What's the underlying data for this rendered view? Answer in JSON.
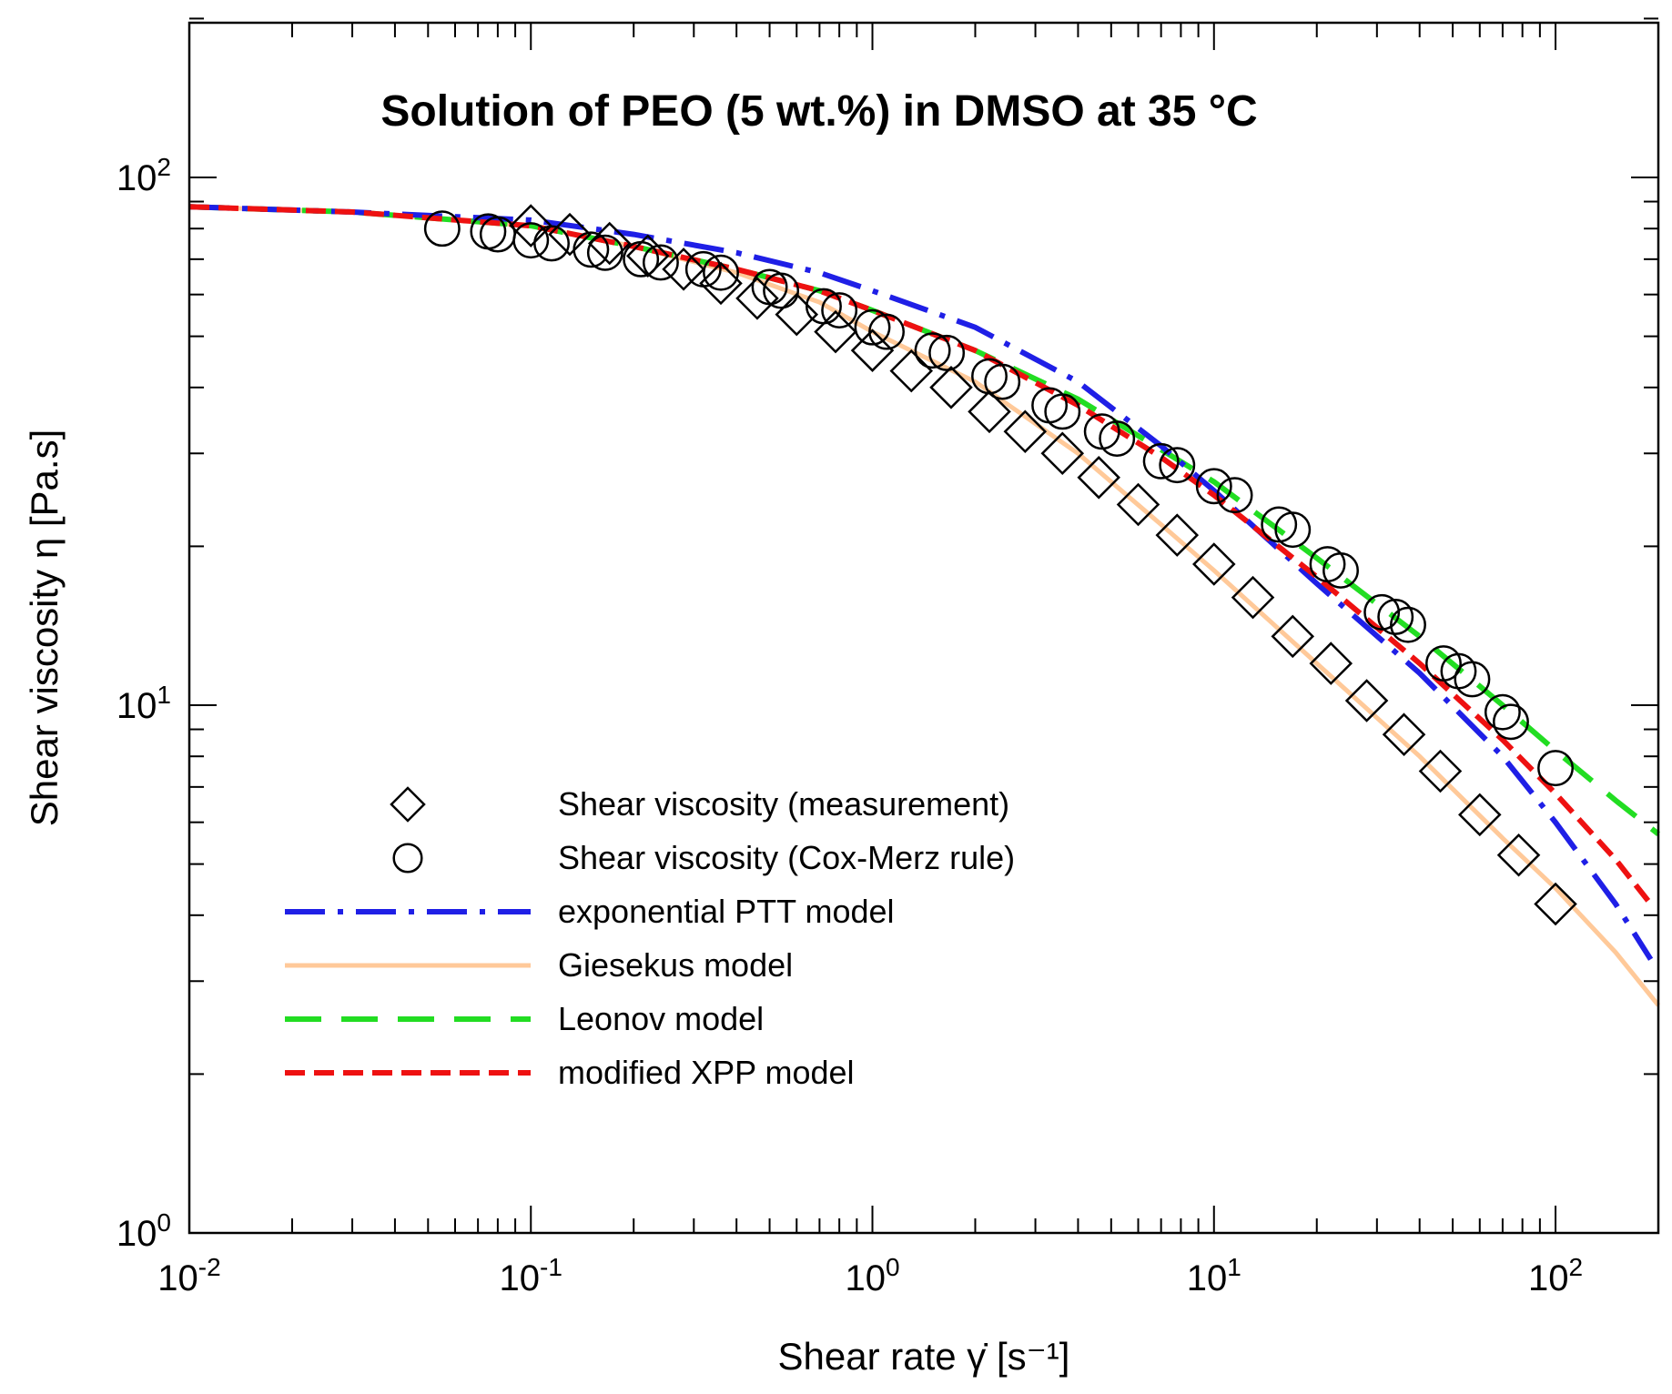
{
  "chart_data": {
    "type": "line",
    "title": "Solution of PEO (5 wt.%) in DMSO at 35 °C",
    "xlabel": "Shear rate γ̇ [s⁻¹]",
    "ylabel": "Shear viscosity η [Pa.s]",
    "xscale": "log",
    "yscale": "log",
    "xlim": [
      0.01,
      200
    ],
    "ylim": [
      1,
      200
    ],
    "x_ticks": [
      {
        "value": 0.01,
        "base": "10",
        "exp": "-2"
      },
      {
        "value": 0.1,
        "base": "10",
        "exp": "-1"
      },
      {
        "value": 1,
        "base": "10",
        "exp": "0"
      },
      {
        "value": 10,
        "base": "10",
        "exp": "1"
      },
      {
        "value": 100,
        "base": "10",
        "exp": "2"
      }
    ],
    "y_ticks": [
      {
        "value": 1,
        "base": "10",
        "exp": "0"
      },
      {
        "value": 10,
        "base": "10",
        "exp": "1"
      },
      {
        "value": 100,
        "base": "10",
        "exp": "2"
      }
    ],
    "legend_position": "lower-left",
    "series": [
      {
        "name": "Shear viscosity (measurement)",
        "kind": "marker",
        "marker": "diamond",
        "color": "#000000",
        "x": [
          0.1,
          0.13,
          0.17,
          0.22,
          0.28,
          0.36,
          0.46,
          0.6,
          0.78,
          1.0,
          1.3,
          1.7,
          2.2,
          2.8,
          3.6,
          4.6,
          6.0,
          7.8,
          10,
          13,
          17,
          22,
          28,
          36,
          46,
          60,
          78,
          100
        ],
        "y": [
          81,
          78,
          75,
          71,
          67,
          63,
          59,
          55,
          51,
          47,
          43,
          40,
          36,
          33,
          30,
          27,
          24,
          21,
          18.5,
          16,
          13.5,
          12,
          10.2,
          8.8,
          7.5,
          6.2,
          5.2,
          4.2
        ]
      },
      {
        "name": "Shear viscosity (Cox-Merz rule)",
        "kind": "marker",
        "marker": "circle",
        "color": "#000000",
        "x": [
          0.055,
          0.075,
          0.08,
          0.1,
          0.115,
          0.15,
          0.165,
          0.21,
          0.24,
          0.32,
          0.36,
          0.5,
          0.54,
          0.72,
          0.8,
          1.0,
          1.1,
          1.5,
          1.65,
          2.2,
          2.4,
          3.3,
          3.6,
          4.7,
          5.2,
          7.0,
          7.8,
          10,
          11.5,
          15.5,
          17,
          21.5,
          23.5,
          31,
          34,
          37,
          47,
          52,
          57,
          70,
          74,
          100
        ],
        "y": [
          80,
          79,
          78,
          76,
          75,
          73,
          72,
          70,
          69,
          67,
          66,
          62,
          61,
          57,
          56,
          52,
          51,
          47,
          46.5,
          42,
          41,
          37,
          36,
          33,
          32,
          29,
          28.5,
          26,
          25,
          22,
          21.5,
          18.5,
          18,
          15,
          14.7,
          14.2,
          12,
          11.6,
          11.2,
          9.7,
          9.3,
          7.6
        ]
      },
      {
        "name": "exponential PTT model",
        "kind": "line",
        "color": "#1f1fe6",
        "x": [
          0.01,
          0.03,
          0.1,
          0.2,
          0.4,
          0.7,
          1.0,
          2.0,
          4.0,
          7.0,
          10,
          20,
          40,
          70,
          100,
          150,
          190
        ],
        "y": [
          88,
          86,
          83,
          78,
          72,
          66,
          61,
          52,
          41,
          31,
          25.5,
          17,
          11.5,
          8,
          6,
          4.2,
          3.3
        ]
      },
      {
        "name": "Giesekus model",
        "kind": "line",
        "color": "#ffc999",
        "x": [
          0.01,
          0.03,
          0.1,
          0.2,
          0.4,
          0.7,
          1.0,
          2.0,
          4.0,
          7.0,
          10,
          20,
          40,
          70,
          100,
          150,
          200
        ],
        "y": [
          88,
          86,
          81,
          74,
          66,
          58,
          51,
          41,
          30,
          22,
          18,
          12,
          8,
          5.6,
          4.5,
          3.4,
          2.7
        ]
      },
      {
        "name": "Leonov model",
        "kind": "line",
        "color": "#22dd22",
        "x": [
          0.01,
          0.03,
          0.1,
          0.2,
          0.4,
          0.7,
          1.0,
          2.0,
          4.0,
          7.0,
          10,
          20,
          40,
          70,
          100,
          150,
          200
        ],
        "y": [
          88,
          86,
          81,
          74,
          67,
          61,
          56,
          47,
          38,
          30.5,
          26.5,
          19,
          13.5,
          10,
          8.2,
          6.6,
          5.7
        ]
      },
      {
        "name": "modified XPP model",
        "kind": "line",
        "color": "#ee1111",
        "x": [
          0.01,
          0.03,
          0.1,
          0.2,
          0.4,
          0.7,
          1.0,
          2.0,
          4.0,
          7.0,
          10,
          20,
          40,
          70,
          100,
          150,
          190
        ],
        "y": [
          88,
          86,
          81,
          74,
          67,
          61,
          56,
          47,
          37,
          29.5,
          25,
          17.5,
          12,
          8.6,
          6.8,
          5.1,
          4.2
        ]
      }
    ]
  }
}
